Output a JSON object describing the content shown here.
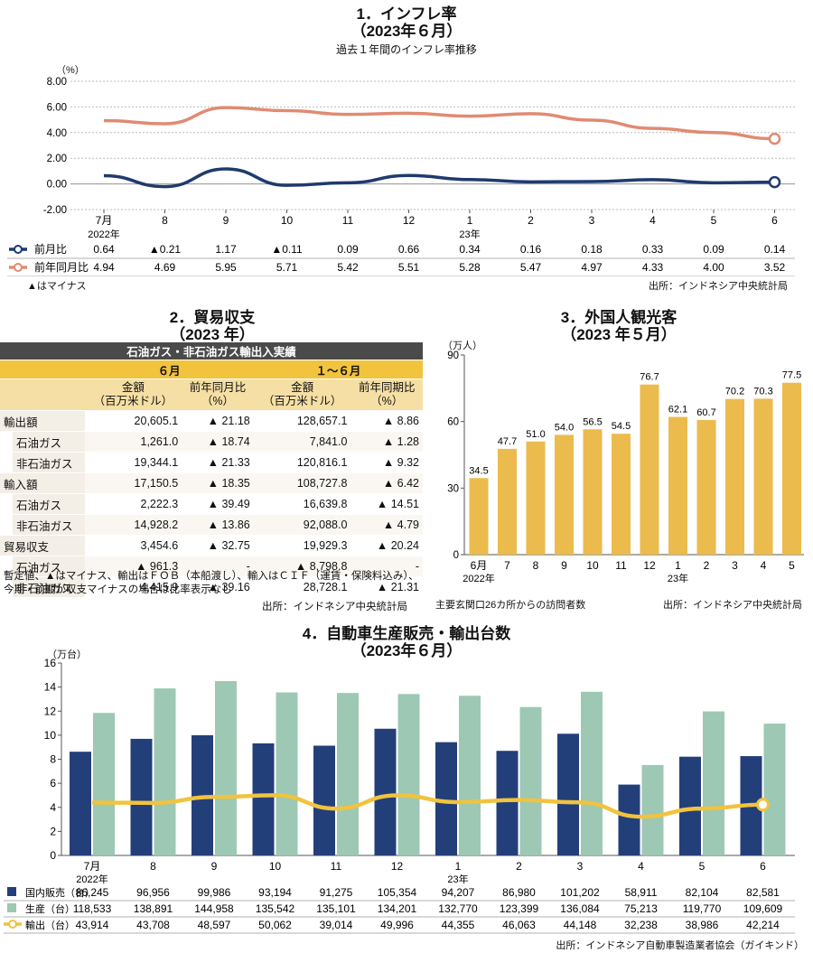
{
  "section1": {
    "title": "1．インフレ率",
    "subtitle": "（2023年６月）",
    "caption": "過去１年間のインフレ率推移",
    "unit": "（%）",
    "note": "▲はマイナス",
    "source": "出所：インドネシア中央統計局",
    "table": [
      {
        "label": "前月比",
        "values": [
          "0.64",
          "▲0.21",
          "1.17",
          "▲0.11",
          "0.09",
          "0.66",
          "0.34",
          "0.16",
          "0.18",
          "0.33",
          "0.09",
          "0.14"
        ]
      },
      {
        "label": "前年同月比",
        "values": [
          "4.94",
          "4.69",
          "5.95",
          "5.71",
          "5.42",
          "5.51",
          "5.28",
          "5.47",
          "4.97",
          "4.33",
          "4.00",
          "3.52"
        ]
      }
    ]
  },
  "section2": {
    "title": "2．貿易収支",
    "subtitle": "（2023 年）",
    "header": "石油ガス・非石油ガス輸出入実績",
    "period1": "６月",
    "period2": "１～６月",
    "col_amount": "金額\n（百万米ドル）",
    "col_yoy": "前年同月比\n（%）",
    "col_amount2": "金額\n（百万米ドル）",
    "col_yoy2": "前年同期比\n（%）",
    "rows": [
      {
        "label": "輸出額",
        "indent": false,
        "c1": "20,605.1",
        "c2": "▲ 21.18",
        "c3": "128,657.1",
        "c4": "▲ 8.86"
      },
      {
        "label": "石油ガス",
        "indent": true,
        "c1": "1,261.0",
        "c2": "▲ 18.74",
        "c3": "7,841.0",
        "c4": "▲ 1.28"
      },
      {
        "label": "非石油ガス",
        "indent": true,
        "c1": "19,344.1",
        "c2": "▲ 21.33",
        "c3": "120,816.1",
        "c4": "▲ 9.32"
      },
      {
        "label": "輸入額",
        "indent": false,
        "c1": "17,150.5",
        "c2": "▲ 18.35",
        "c3": "108,727.8",
        "c4": "▲ 6.42"
      },
      {
        "label": "石油ガス",
        "indent": true,
        "c1": "2,222.3",
        "c2": "▲ 39.49",
        "c3": "16,639.8",
        "c4": "▲ 14.51"
      },
      {
        "label": "非石油ガス",
        "indent": true,
        "c1": "14,928.2",
        "c2": "▲ 13.86",
        "c3": "92,088.0",
        "c4": "▲ 4.79"
      },
      {
        "label": "貿易収支",
        "indent": false,
        "c1": "3,454.6",
        "c2": "▲ 32.75",
        "c3": "19,929.3",
        "c4": "▲ 20.24"
      },
      {
        "label": "石油ガス",
        "indent": true,
        "c1": "▲ 961.3",
        "c2": "-",
        "c3": "▲ 8,798.8",
        "c4": "-"
      },
      {
        "label": "非石油ガス",
        "indent": true,
        "c1": "4,415.9",
        "c2": "▲ 39.16",
        "c3": "28,728.1",
        "c4": "▲ 21.31"
      }
    ],
    "note": "暫定値、▲はマイナス、輸出はＦＯＢ（本船渡し）、輸入はＣＩＦ（運賃・保険料込み）、今期・前期が収支マイナスの場合は比率表示なし",
    "source": "出所：インドネシア中央統計局"
  },
  "section3": {
    "title": "3．外国人観光客",
    "subtitle": "（2023 年５月）",
    "unit": "（万人）",
    "caption": "主要玄関口26カ所からの訪問者数",
    "source": "出所：インドネシア中央統計局"
  },
  "section4": {
    "title": "4．自動車生産販売・輸出台数",
    "subtitle": "（2023年６月）",
    "unit": "（万台）",
    "source": "出所：インドネシア自動車製造業者協会（ガイキンド）",
    "table": [
      {
        "label": "国内販売（台）",
        "values": [
          "86,245",
          "96,956",
          "99,986",
          "93,194",
          "91,275",
          "105,354",
          "94,207",
          "86,980",
          "101,202",
          "58,911",
          "82,104",
          "82,581"
        ]
      },
      {
        "label": "生産（台）",
        "values": [
          "118,533",
          "138,891",
          "144,958",
          "135,542",
          "135,101",
          "134,201",
          "132,770",
          "123,399",
          "136,084",
          "75,213",
          "119,770",
          "109,609"
        ]
      },
      {
        "label": "輸出（台）",
        "values": [
          "43,914",
          "43,708",
          "48,597",
          "50,062",
          "39,014",
          "49,996",
          "44,355",
          "46,063",
          "44,148",
          "32,238",
          "38,986",
          "42,214"
        ]
      }
    ]
  },
  "chart_data": [
    {
      "type": "line",
      "categories": [
        "7月",
        "8",
        "9",
        "10",
        "11",
        "12",
        "1",
        "2",
        "3",
        "4",
        "5",
        "6"
      ],
      "category_sublabels": {
        "0": "2022年",
        "6": "23年"
      },
      "ylim": [
        -2,
        8
      ],
      "yticks": [
        "-2.00",
        "0.00",
        "2.00",
        "4.00",
        "6.00",
        "8.00"
      ],
      "series": [
        {
          "name": "前月比",
          "color": "#1f3a6e",
          "values": [
            0.64,
            -0.21,
            1.17,
            -0.11,
            0.09,
            0.66,
            0.34,
            0.16,
            0.18,
            0.33,
            0.09,
            0.14
          ]
        },
        {
          "name": "前年同月比",
          "color": "#e08b72",
          "values": [
            4.94,
            4.69,
            5.95,
            5.71,
            5.42,
            5.51,
            5.28,
            5.47,
            4.97,
            4.33,
            4.0,
            3.52
          ]
        }
      ]
    },
    {
      "type": "bar",
      "categories": [
        "6月",
        "7",
        "8",
        "9",
        "10",
        "11",
        "12",
        "1",
        "2",
        "3",
        "4",
        "5"
      ],
      "category_sublabels": {
        "0": "2022年",
        "7": "23年"
      },
      "values": [
        34.5,
        47.7,
        51.0,
        54.0,
        56.5,
        54.5,
        76.7,
        62.1,
        60.7,
        70.2,
        70.3,
        77.5
      ],
      "labels": [
        "34.5",
        "47.7",
        "51.0",
        "54.0",
        "56.5",
        "54.5",
        "76.7",
        "62.1",
        "60.7",
        "70.2",
        "70.3",
        "77.5"
      ],
      "ylim": [
        0,
        90
      ],
      "yticks": [
        "0",
        "30",
        "60",
        "90"
      ],
      "color": "#ebbb4e"
    },
    {
      "type": "bar",
      "categories": [
        "7月",
        "8",
        "9",
        "10",
        "11",
        "12",
        "1",
        "2",
        "3",
        "4",
        "5",
        "6"
      ],
      "category_sublabels": {
        "0": "2022年",
        "6": "23年"
      },
      "ylim": [
        0,
        16
      ],
      "yticks": [
        "0",
        "2",
        "4",
        "6",
        "8",
        "10",
        "12",
        "14",
        "16"
      ],
      "series": [
        {
          "name": "国内販売（台）",
          "type": "bar",
          "color": "#233f7a",
          "values": [
            8.6245,
            9.6956,
            9.9986,
            9.3194,
            9.1275,
            10.5354,
            9.4207,
            8.698,
            10.1202,
            5.8911,
            8.2104,
            8.2581
          ]
        },
        {
          "name": "生産（台）",
          "type": "bar",
          "color": "#9cc8b4",
          "values": [
            11.8533,
            13.8891,
            14.4958,
            13.5542,
            13.5101,
            13.4201,
            13.277,
            12.3399,
            13.6084,
            7.5213,
            11.977,
            10.9609
          ]
        },
        {
          "name": "輸出（台）",
          "type": "line",
          "color": "#f1c33e",
          "values": [
            4.3914,
            4.3708,
            4.8597,
            5.0062,
            3.9014,
            4.9996,
            4.4355,
            4.6063,
            4.4148,
            3.2238,
            3.8986,
            4.2214
          ]
        }
      ]
    }
  ]
}
